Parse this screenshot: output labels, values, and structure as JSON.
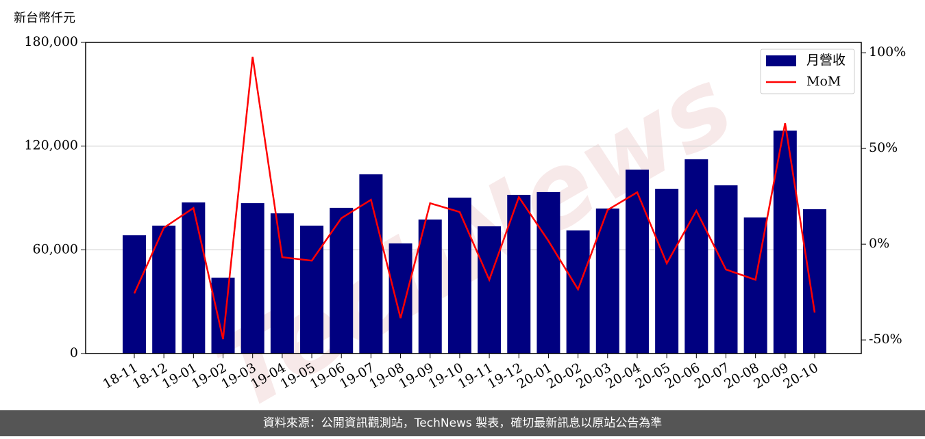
{
  "chart_data": {
    "type": "bar-line",
    "y_label": "新台幣仟元",
    "watermark": "TechNews",
    "categories": [
      "18-11",
      "18-12",
      "19-01",
      "19-02",
      "19-03",
      "19-04",
      "19-05",
      "19-06",
      "19-07",
      "19-08",
      "19-09",
      "19-10",
      "19-11",
      "19-12",
      "20-01",
      "20-02",
      "20-03",
      "20-04",
      "20-05",
      "20-06",
      "20-07",
      "20-08",
      "20-09",
      "20-10"
    ],
    "series": [
      {
        "name": "月營收",
        "type": "bar",
        "color": "#000080",
        "values": [
          68400,
          74000,
          87400,
          43900,
          87000,
          81100,
          74000,
          84300,
          103700,
          63700,
          77500,
          90200,
          73600,
          91800,
          93400,
          71200,
          83900,
          106400,
          95300,
          112400,
          97300,
          78700,
          129000,
          83500
        ]
      },
      {
        "name": "MoM",
        "type": "line",
        "axis": "y2",
        "color": "#ff0000",
        "values": [
          -25.7,
          8.6,
          18.9,
          -49.6,
          97.9,
          -6.8,
          -8.6,
          13.6,
          23.2,
          -38.6,
          21.4,
          16.8,
          -18.6,
          24.6,
          1.7,
          -23.6,
          17.9,
          27.1,
          -10,
          17.5,
          -13.2,
          -18.6,
          63.2,
          -35.7
        ]
      }
    ],
    "ylim": [
      0,
      180000
    ],
    "yticks": [
      0,
      {
        "value": 60000,
        "label": "60,000"
      },
      {
        "value": 120000,
        "label": "120,000"
      },
      {
        "value": 180000,
        "label": "180,000"
      }
    ],
    "y2lim": [
      -57.1,
      105.4
    ],
    "y2ticks": [
      {
        "value": -50,
        "label": "-50%"
      },
      {
        "value": 0,
        "label": "0%"
      },
      {
        "value": 50,
        "label": "50%"
      },
      {
        "value": 100,
        "label": "100%"
      }
    ],
    "grid": true,
    "legend": "upper right",
    "footer": "資料來源：公開資訊觀測站，TechNews 製表，確切最新訊息以原站公告為準"
  }
}
